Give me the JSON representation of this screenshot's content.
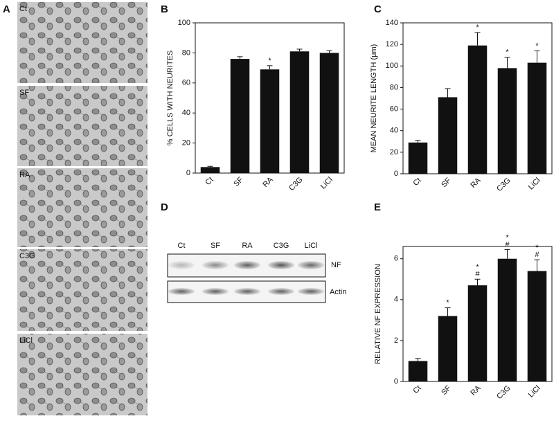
{
  "chart_data": [
    {
      "type": "bar",
      "label": "B",
      "ylabel": "% CELLS WITH NEURITES",
      "categories": [
        "Ct",
        "SF",
        "RA",
        "C3G",
        "LiCl"
      ],
      "values": [
        4,
        76,
        69,
        81,
        80
      ],
      "errors": [
        0.5,
        1.5,
        2.5,
        1.5,
        1.5
      ],
      "stars": [
        null,
        null,
        "*",
        null,
        null
      ],
      "hashes": [
        null,
        null,
        null,
        null,
        null
      ],
      "color": "#111111",
      "ylim": [
        0,
        100
      ],
      "yticks": [
        0,
        20,
        40,
        60,
        80,
        100
      ]
    },
    {
      "type": "bar",
      "label": "C",
      "ylabel": "MEAN NEURITE LENGTH (μm)",
      "categories": [
        "Ct",
        "SF",
        "RA",
        "C3G",
        "LiCl"
      ],
      "values": [
        29,
        71,
        119,
        98,
        103
      ],
      "errors": [
        2,
        8,
        12,
        10,
        11
      ],
      "stars": [
        null,
        null,
        "*",
        "*",
        "*"
      ],
      "hashes": [
        null,
        null,
        null,
        null,
        null
      ],
      "color": "#111111",
      "ylim": [
        0,
        140
      ],
      "yticks": [
        0,
        20,
        40,
        60,
        80,
        100,
        120,
        140
      ]
    },
    {
      "type": "bar",
      "label": "E",
      "ylabel": "RELATIVE NF EXPRESSION",
      "categories": [
        "Ct",
        "SF",
        "RA",
        "C3G",
        "LiCl"
      ],
      "values": [
        1.0,
        3.2,
        4.7,
        6.0,
        5.4
      ],
      "errors": [
        0.12,
        0.4,
        0.3,
        0.45,
        0.55
      ],
      "stars": [
        null,
        "*",
        "*",
        "*",
        "*"
      ],
      "hashes": [
        null,
        null,
        "#",
        "#",
        "#"
      ],
      "color": "#111111",
      "ylim": [
        0,
        6.6
      ],
      "yticks": [
        0,
        2,
        4,
        6
      ]
    }
  ],
  "panel_a": {
    "label": "A",
    "images": [
      "Ct",
      "SF",
      "RA",
      "C3G",
      "LiCl"
    ]
  },
  "panel_d": {
    "label": "D",
    "lanes": [
      "Ct",
      "SF",
      "RA",
      "C3G",
      "LiCl"
    ],
    "rows": [
      "NF",
      "Actin"
    ]
  }
}
